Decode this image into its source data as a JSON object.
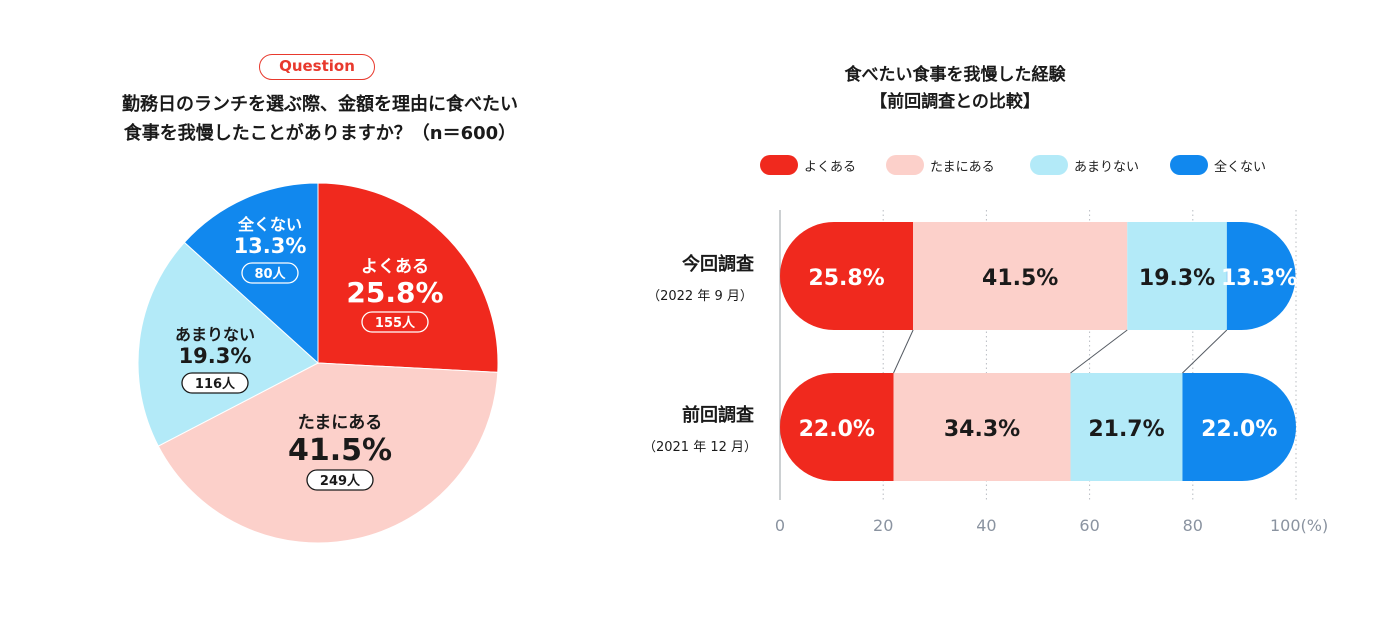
{
  "left": {
    "badge": "Question",
    "question_line1": "勤務日のランチを選ぶ際、金額を理由に食べたい",
    "question_line2": "食事を我慢したことがありますか？（n＝600）"
  },
  "right": {
    "title_line1": "食べたい食事を我慢した経験",
    "title_line2": "【前回調査との比較】"
  },
  "colors": {
    "yokuaru": "#f0291e",
    "tamani": "#fcd0ca",
    "amari": "#b3eaf8",
    "mattaku": "#1188ee"
  },
  "chart_data": [
    {
      "type": "pie",
      "slices": [
        {
          "label": "よくある",
          "value": 25.8,
          "value_label": "25.8%",
          "count": "155人",
          "color": "#f0291e"
        },
        {
          "label": "たまにある",
          "value": 41.5,
          "value_label": "41.5%",
          "count": "249人",
          "color": "#fcd0ca"
        },
        {
          "label": "あまりない",
          "value": 19.3,
          "value_label": "19.3%",
          "count": "116人",
          "color": "#b3eaf8"
        },
        {
          "label": "全くない",
          "value": 13.3,
          "value_label": "13.3%",
          "count": "80人",
          "color": "#1188ee"
        }
      ]
    },
    {
      "type": "bar",
      "orientation": "horizontal",
      "stacked": true,
      "categories": [
        "今回調査",
        "前回調査"
      ],
      "category_sublabels": [
        "（2022 年 9 月）",
        "（2021 年 12 月）"
      ],
      "series": [
        {
          "name": "よくある",
          "values": [
            25.8,
            22.0
          ],
          "value_labels": [
            "25.8%",
            "22.0%"
          ],
          "color": "#f0291e"
        },
        {
          "name": "たまにある",
          "values": [
            41.5,
            34.3
          ],
          "value_labels": [
            "41.5%",
            "34.3%"
          ],
          "color": "#fcd0ca"
        },
        {
          "name": "あまりない",
          "values": [
            19.3,
            21.7
          ],
          "value_labels": [
            "19.3%",
            "21.7%"
          ],
          "color": "#b3eaf8"
        },
        {
          "name": "全くない",
          "values": [
            13.3,
            22.0
          ],
          "value_labels": [
            "13.3%",
            "22.0%"
          ],
          "color": "#1188ee"
        }
      ],
      "x_ticks": [
        "0",
        "20",
        "40",
        "60",
        "80",
        "100(%)"
      ],
      "xlim": [
        0,
        100
      ],
      "grid": true,
      "legend": "top"
    }
  ]
}
